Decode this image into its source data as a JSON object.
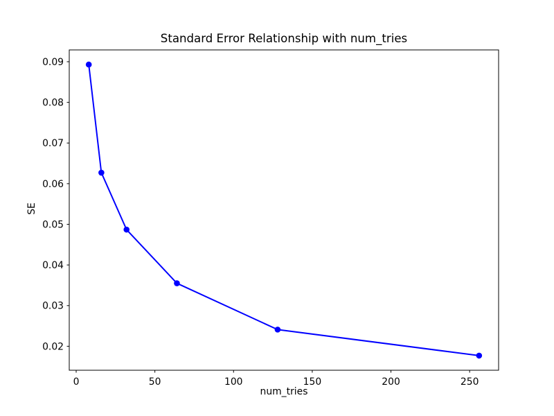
{
  "chart_data": {
    "type": "line",
    "title": "Standard Error Relationship with num_tries",
    "xlabel": "num_tries",
    "ylabel": "SE",
    "x": [
      8,
      16,
      32,
      64,
      128,
      256
    ],
    "y": [
      0.0893,
      0.0627,
      0.0487,
      0.0355,
      0.0241,
      0.0177
    ],
    "xlim": [
      -4.4,
      268.4
    ],
    "ylim": [
      0.0141,
      0.0929
    ],
    "xticks": [
      0,
      50,
      100,
      150,
      200,
      250
    ],
    "xtick_labels": [
      "0",
      "50",
      "100",
      "150",
      "200",
      "250"
    ],
    "yticks": [
      0.02,
      0.03,
      0.04,
      0.05,
      0.06,
      0.07,
      0.08,
      0.09
    ],
    "ytick_labels": [
      "0.02",
      "0.03",
      "0.04",
      "0.05",
      "0.06",
      "0.07",
      "0.08",
      "0.09"
    ],
    "grid": false,
    "legend": "none",
    "line_color": "#0000ff",
    "marker": "o",
    "spine_color": "#000000",
    "background_color": "#ffffff"
  }
}
